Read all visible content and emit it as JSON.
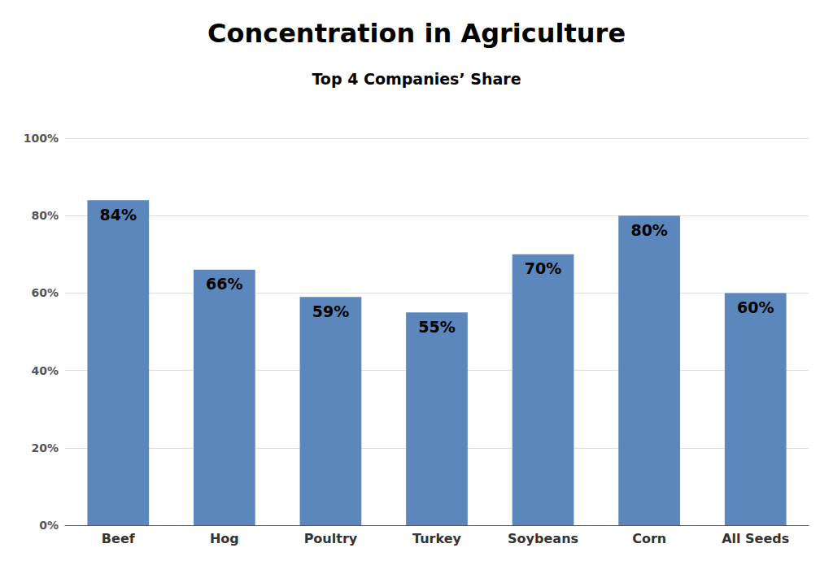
{
  "chart_data": {
    "type": "bar",
    "title": "Concentration in Agriculture",
    "subtitle": "Top 4 Companies’ Share",
    "categories": [
      "Beef",
      "Hog",
      "Poultry",
      "Turkey",
      "Soybeans",
      "Corn",
      "All Seeds"
    ],
    "values": [
      84,
      66,
      59,
      55,
      70,
      80,
      60
    ],
    "value_labels": [
      "84%",
      "66%",
      "59%",
      "55%",
      "70%",
      "80%",
      "60%"
    ],
    "data_labels": true,
    "color": "#5b87bc",
    "ylim": [
      0,
      100
    ],
    "yticks": [
      {
        "value": 0,
        "label": "0%"
      },
      {
        "value": 20,
        "label": "20%"
      },
      {
        "value": 40,
        "label": "40%"
      },
      {
        "value": 60,
        "label": "60%"
      },
      {
        "value": 80,
        "label": "80%"
      },
      {
        "value": 100,
        "label": "100%"
      }
    ],
    "grid": true
  }
}
